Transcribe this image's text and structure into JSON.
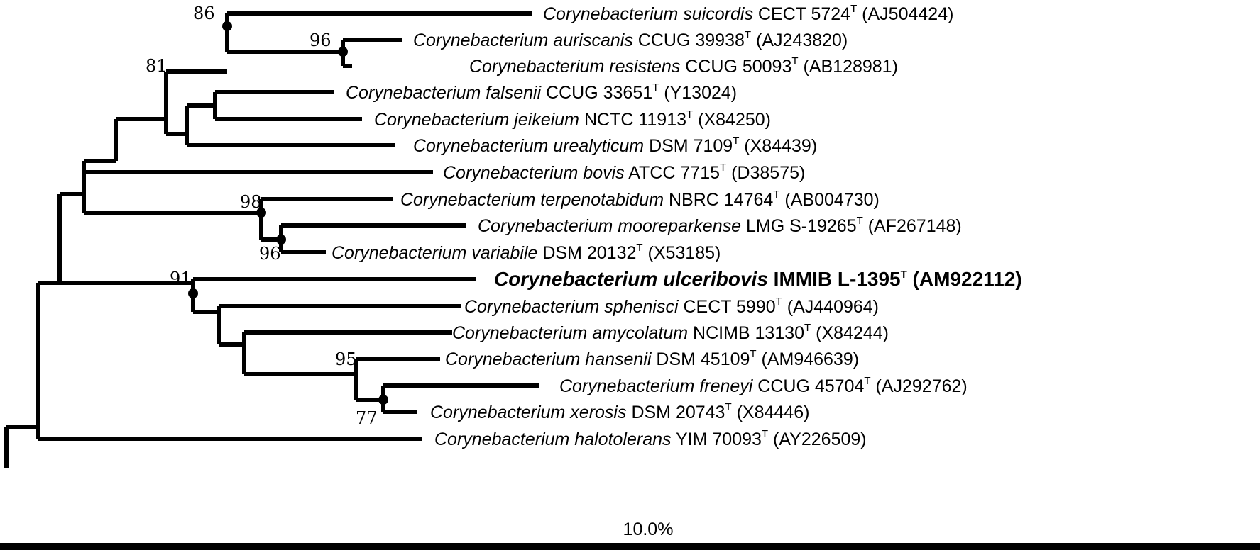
{
  "taxa": [
    {
      "genus": "Corynebacterium",
      "species": "suicordis",
      "strain": "CECT 5724",
      "type_mark": "T",
      "accession": "(AJ504424)",
      "highlight": false
    },
    {
      "genus": "Corynebacterium",
      "species": "auriscanis",
      "strain": "CCUG 39938",
      "type_mark": "T",
      "accession": "(AJ243820)",
      "highlight": false
    },
    {
      "genus": "Corynebacterium",
      "species": "resistens",
      "strain": "CCUG 50093",
      "type_mark": "T",
      "accession": "(AB128981)",
      "highlight": false
    },
    {
      "genus": "Corynebacterium",
      "species": "falsenii",
      "strain": "CCUG 33651",
      "type_mark": "T",
      "accession": "(Y13024)",
      "highlight": false
    },
    {
      "genus": "Corynebacterium",
      "species": "jeikeium",
      "strain": "NCTC 11913",
      "type_mark": "T",
      "accession": "(X84250)",
      "highlight": false
    },
    {
      "genus": "Corynebacterium",
      "species": "urealyticum",
      "strain": "DSM 7109",
      "type_mark": "T",
      "accession": "(X84439)",
      "highlight": false
    },
    {
      "genus": "Corynebacterium",
      "species": "bovis",
      "strain": "ATCC 7715",
      "type_mark": "T",
      "accession": "(D38575)",
      "highlight": false
    },
    {
      "genus": "Corynebacterium",
      "species": "terpenotabidum",
      "strain": "NBRC 14764",
      "type_mark": "T",
      "accession": "(AB004730)",
      "highlight": false
    },
    {
      "genus": "Corynebacterium",
      "species": "mooreparkense",
      "strain": "LMG S-19265",
      "type_mark": "T",
      "accession": "(AF267148)",
      "highlight": false
    },
    {
      "genus": "Corynebacterium",
      "species": "variabile",
      "strain": "DSM 20132",
      "type_mark": "T",
      "accession": "(X53185)",
      "highlight": false
    },
    {
      "genus": "Corynebacterium",
      "species": "ulceribovis",
      "strain": "IMMIB L-1395",
      "type_mark": "T",
      "accession": "(AM922112)",
      "highlight": true
    },
    {
      "genus": "Corynebacterium",
      "species": "sphenisci",
      "strain": "CECT 5990",
      "type_mark": "T",
      "accession": "(AJ440964)",
      "highlight": false
    },
    {
      "genus": "Corynebacterium",
      "species": "amycolatum",
      "strain": "NCIMB 13130",
      "type_mark": "T",
      "accession": "(X84244)",
      "highlight": false
    },
    {
      "genus": "Corynebacterium",
      "species": "hansenii",
      "strain": "DSM 45109",
      "type_mark": "T",
      "accession": "(AM946639)",
      "highlight": false
    },
    {
      "genus": "Corynebacterium",
      "species": "freneyi",
      "strain": "CCUG 45704",
      "type_mark": "T",
      "accession": "(AJ292762)",
      "highlight": false
    },
    {
      "genus": "Corynebacterium",
      "species": "xerosis",
      "strain": "DSM 20743",
      "type_mark": "T",
      "accession": "(X84446)",
      "highlight": false
    },
    {
      "genus": "Corynebacterium",
      "species": "halotolerans",
      "strain": "YIM 70093",
      "type_mark": "T",
      "accession": "(AY226509)",
      "highlight": false
    }
  ],
  "bootstrap_values": [
    "86",
    "96",
    "81",
    "98",
    "96",
    "91",
    "95",
    "77"
  ],
  "scale": {
    "label": "10.0%"
  }
}
